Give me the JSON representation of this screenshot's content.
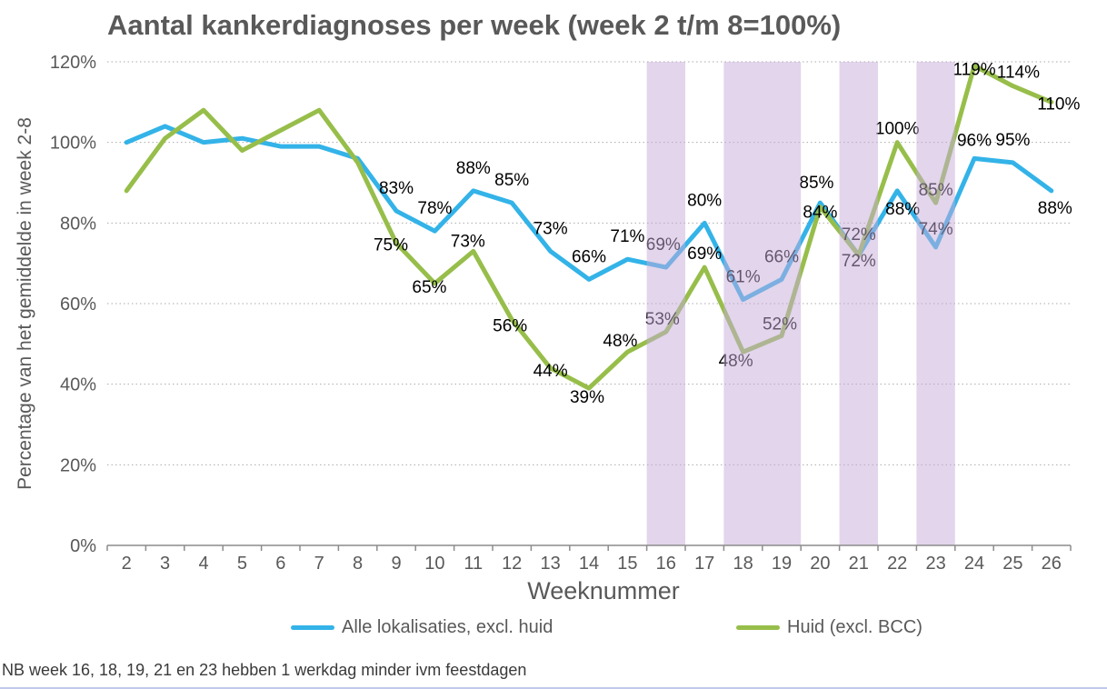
{
  "title": "Aantal kankerdiagnoses per week (week 2 t/m 8=100%)",
  "footer_note": "NB week 16, 18, 19, 21 en 23 hebben 1 werkdag minder ivm feestdagen",
  "chart_data": {
    "type": "line",
    "title": "Aantal kankerdiagnoses per week (week 2 t/m 8=100%)",
    "xlabel": "Weeknummer",
    "ylabel": "Percentage van het gemiddelde in week 2-8",
    "x": [
      2,
      3,
      4,
      5,
      6,
      7,
      8,
      9,
      10,
      11,
      12,
      13,
      14,
      15,
      16,
      17,
      18,
      19,
      20,
      21,
      22,
      23,
      24,
      25,
      26
    ],
    "ylim": [
      0,
      120
    ],
    "grid": "horizontal-dotted",
    "legend_position": "bottom",
    "yticks": [
      {
        "v": 0,
        "label": "0%"
      },
      {
        "v": 20,
        "label": "20%"
      },
      {
        "v": 40,
        "label": "40%"
      },
      {
        "v": 60,
        "label": "60%"
      },
      {
        "v": 80,
        "label": "80%"
      },
      {
        "v": 100,
        "label": "100%"
      },
      {
        "v": 120,
        "label": "120%"
      }
    ],
    "series": [
      {
        "name": "Alle lokalisaties, excl. huid",
        "slug": "alle-lokalisaties",
        "color": "#33B3E8",
        "values": [
          100,
          104,
          100,
          101,
          99,
          99,
          96,
          83,
          78,
          88,
          85,
          73,
          66,
          71,
          69,
          80,
          61,
          66,
          85,
          72,
          88,
          74,
          96,
          95,
          88
        ],
        "labels": [
          null,
          null,
          null,
          null,
          null,
          null,
          null,
          "83%",
          "78%",
          "88%",
          "85%",
          "73%",
          "66%",
          "71%",
          "69%",
          "80%",
          "61%",
          "66%",
          "85%",
          "72%",
          "88%",
          "74%",
          "96%",
          "95%",
          "88%"
        ]
      },
      {
        "name": "Huid (excl. BCC)",
        "slug": "huid",
        "color": "#97BE4A",
        "values": [
          88,
          101,
          108,
          98,
          103,
          108,
          95,
          75,
          65,
          73,
          56,
          44,
          39,
          48,
          53,
          69,
          48,
          52,
          84,
          72,
          100,
          85,
          119,
          114,
          110
        ],
        "labels": [
          null,
          null,
          null,
          null,
          null,
          null,
          null,
          "75%",
          "65%",
          "73%",
          "56%",
          "44%",
          "39%",
          "48%",
          "53%",
          "69%",
          "48%",
          "52%",
          "84%",
          "72%",
          "100%",
          "85%",
          "119%",
          "114%",
          "110%"
        ]
      }
    ],
    "holiday_bands": {
      "weeks": [
        [
          16,
          16
        ],
        [
          18,
          19
        ],
        [
          21,
          21
        ],
        [
          23,
          23
        ]
      ],
      "color": "rgba(197,171,217,0.5)"
    }
  }
}
